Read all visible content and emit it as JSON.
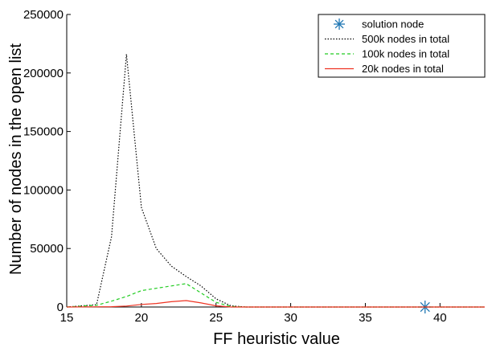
{
  "chart_data": {
    "type": "line",
    "title": "",
    "xlabel": "FF heuristic value",
    "ylabel": "Number of nodes in the open list",
    "xlim": [
      15,
      43
    ],
    "ylim": [
      0,
      250000
    ],
    "xticks": [
      15,
      20,
      25,
      30,
      35,
      40
    ],
    "yticks": [
      0,
      50000,
      100000,
      150000,
      200000,
      250000
    ],
    "grid": false,
    "legend_position": "top-right",
    "series": [
      {
        "name": "solution node",
        "style": "marker",
        "marker": "asterisk",
        "color": "#1f77b4",
        "points": [
          [
            39,
            0
          ]
        ]
      },
      {
        "name": "500k nodes in total",
        "style": "dotted",
        "color": "#000000",
        "points": [
          [
            15,
            0
          ],
          [
            17,
            2000
          ],
          [
            18,
            60000
          ],
          [
            19,
            216000
          ],
          [
            20,
            85000
          ],
          [
            21,
            50000
          ],
          [
            22,
            35000
          ],
          [
            23,
            26000
          ],
          [
            24,
            18000
          ],
          [
            25,
            7000
          ],
          [
            26,
            1000
          ],
          [
            27,
            0
          ],
          [
            43,
            0
          ]
        ]
      },
      {
        "name": "100k nodes in total",
        "style": "dashed",
        "color": "#22cc22",
        "points": [
          [
            15,
            0
          ],
          [
            17,
            1500
          ],
          [
            18,
            5000
          ],
          [
            19,
            9000
          ],
          [
            20,
            14000
          ],
          [
            21,
            16000
          ],
          [
            22,
            18000
          ],
          [
            23,
            20000
          ],
          [
            24,
            12000
          ],
          [
            25,
            4000
          ],
          [
            26,
            500
          ],
          [
            27,
            0
          ],
          [
            43,
            0
          ]
        ]
      },
      {
        "name": "20k nodes in total",
        "style": "solid",
        "color": "#ee3322",
        "points": [
          [
            15,
            0
          ],
          [
            18,
            300
          ],
          [
            19,
            800
          ],
          [
            20,
            2200
          ],
          [
            21,
            3000
          ],
          [
            22,
            4500
          ],
          [
            23,
            5500
          ],
          [
            24,
            3500
          ],
          [
            25,
            1000
          ],
          [
            26,
            0
          ],
          [
            43,
            0
          ]
        ]
      }
    ]
  }
}
